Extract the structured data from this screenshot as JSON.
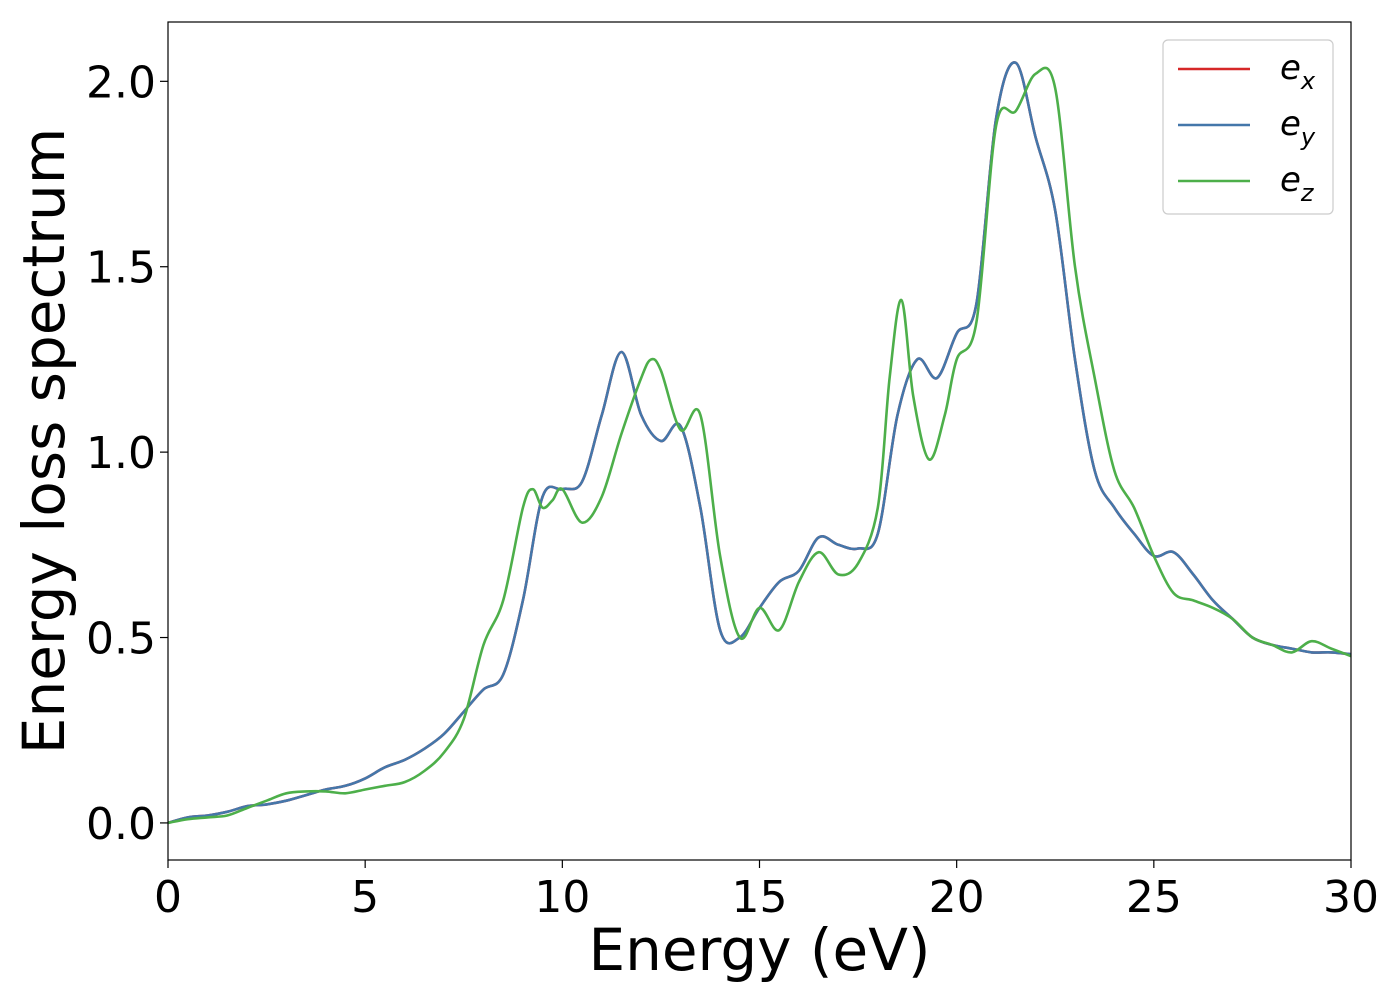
{
  "chart_data": {
    "type": "line",
    "title": "",
    "xlabel": "Energy (eV)",
    "ylabel": "Energy loss spectrum",
    "xlim": [
      0,
      30
    ],
    "ylim": [
      -0.1,
      2.16
    ],
    "xticks": [
      0,
      5,
      10,
      15,
      20,
      25,
      30
    ],
    "xtick_labels": [
      "0",
      "5",
      "10",
      "15",
      "20",
      "25",
      "30"
    ],
    "yticks": [
      0.0,
      0.5,
      1.0,
      1.5,
      2.0
    ],
    "ytick_labels": [
      "0.0",
      "0.5",
      "1.0",
      "1.5",
      "2.0"
    ],
    "grid": false,
    "legend_position": "top-right",
    "series": [
      {
        "name": "e_x",
        "label_main": "e",
        "label_sub": "x",
        "color": "#d62728",
        "x": [
          0,
          0.5,
          1,
          1.5,
          2,
          2.5,
          3,
          3.5,
          4,
          4.5,
          5,
          5.5,
          6,
          6.5,
          7,
          7.5,
          8,
          8.5,
          9,
          9.5,
          10,
          10.5,
          11,
          11.5,
          12,
          12.5,
          13,
          13.5,
          14,
          14.5,
          15,
          15.5,
          16,
          16.5,
          17,
          17.5,
          18,
          18.5,
          19,
          19.5,
          20,
          20.5,
          21,
          21.5,
          22,
          22.5,
          23,
          23.5,
          24,
          24.5,
          25,
          25.5,
          26,
          26.5,
          27,
          27.5,
          28,
          28.5,
          29,
          29.5,
          30
        ],
        "y": [
          0.0,
          0.015,
          0.02,
          0.03,
          0.045,
          0.05,
          0.06,
          0.075,
          0.09,
          0.1,
          0.12,
          0.15,
          0.17,
          0.2,
          0.24,
          0.3,
          0.36,
          0.4,
          0.6,
          0.88,
          0.9,
          0.92,
          1.1,
          1.27,
          1.1,
          1.03,
          1.07,
          0.85,
          0.52,
          0.5,
          0.58,
          0.65,
          0.68,
          0.77,
          0.75,
          0.74,
          0.78,
          1.1,
          1.25,
          1.2,
          1.32,
          1.4,
          1.9,
          2.05,
          1.85,
          1.65,
          1.25,
          0.95,
          0.85,
          0.78,
          0.72,
          0.73,
          0.67,
          0.6,
          0.55,
          0.5,
          0.48,
          0.47,
          0.46,
          0.46,
          0.455
        ]
      },
      {
        "name": "e_y",
        "label_main": "e",
        "label_sub": "y",
        "color": "#4477aa",
        "x": [
          0,
          0.5,
          1,
          1.5,
          2,
          2.5,
          3,
          3.5,
          4,
          4.5,
          5,
          5.5,
          6,
          6.5,
          7,
          7.5,
          8,
          8.5,
          9,
          9.5,
          10,
          10.5,
          11,
          11.5,
          12,
          12.5,
          13,
          13.5,
          14,
          14.5,
          15,
          15.5,
          16,
          16.5,
          17,
          17.5,
          18,
          18.5,
          19,
          19.5,
          20,
          20.5,
          21,
          21.5,
          22,
          22.5,
          23,
          23.5,
          24,
          24.5,
          25,
          25.5,
          26,
          26.5,
          27,
          27.5,
          28,
          28.5,
          29,
          29.5,
          30
        ],
        "y": [
          0.0,
          0.015,
          0.02,
          0.03,
          0.045,
          0.05,
          0.06,
          0.075,
          0.09,
          0.1,
          0.12,
          0.15,
          0.17,
          0.2,
          0.24,
          0.3,
          0.36,
          0.4,
          0.6,
          0.88,
          0.9,
          0.92,
          1.1,
          1.27,
          1.1,
          1.03,
          1.07,
          0.85,
          0.52,
          0.5,
          0.58,
          0.65,
          0.68,
          0.77,
          0.75,
          0.74,
          0.78,
          1.1,
          1.25,
          1.2,
          1.32,
          1.4,
          1.9,
          2.05,
          1.85,
          1.65,
          1.25,
          0.95,
          0.85,
          0.78,
          0.72,
          0.73,
          0.67,
          0.6,
          0.55,
          0.5,
          0.48,
          0.47,
          0.46,
          0.46,
          0.455
        ]
      },
      {
        "name": "e_z",
        "label_main": "e",
        "label_sub": "z",
        "color": "#4daf4a",
        "x": [
          0,
          0.5,
          1,
          1.5,
          2,
          2.5,
          3,
          3.5,
          4,
          4.5,
          5,
          5.5,
          6,
          6.5,
          7,
          7.5,
          8,
          8.5,
          9,
          9.25,
          9.5,
          9.75,
          10,
          10.5,
          11,
          11.5,
          12,
          12.25,
          12.5,
          13,
          13.5,
          14,
          14.5,
          15,
          15.5,
          16,
          16.5,
          17,
          17.5,
          18,
          18.3,
          18.6,
          18.9,
          19.3,
          19.7,
          20,
          20.5,
          21,
          21.5,
          22,
          22.5,
          23,
          23.5,
          24,
          24.5,
          25,
          25.5,
          26,
          26.5,
          27,
          27.5,
          28,
          28.5,
          29,
          29.5,
          30
        ],
        "y": [
          0.0,
          0.01,
          0.015,
          0.02,
          0.04,
          0.06,
          0.08,
          0.085,
          0.085,
          0.08,
          0.09,
          0.1,
          0.11,
          0.14,
          0.19,
          0.28,
          0.48,
          0.6,
          0.85,
          0.9,
          0.85,
          0.87,
          0.9,
          0.81,
          0.88,
          1.05,
          1.2,
          1.25,
          1.22,
          1.06,
          1.1,
          0.72,
          0.5,
          0.58,
          0.52,
          0.65,
          0.73,
          0.67,
          0.7,
          0.85,
          1.2,
          1.41,
          1.15,
          0.98,
          1.1,
          1.25,
          1.35,
          1.88,
          1.92,
          2.02,
          1.98,
          1.5,
          1.2,
          0.95,
          0.85,
          0.72,
          0.62,
          0.6,
          0.58,
          0.55,
          0.5,
          0.48,
          0.46,
          0.49,
          0.47,
          0.45
        ]
      }
    ]
  }
}
